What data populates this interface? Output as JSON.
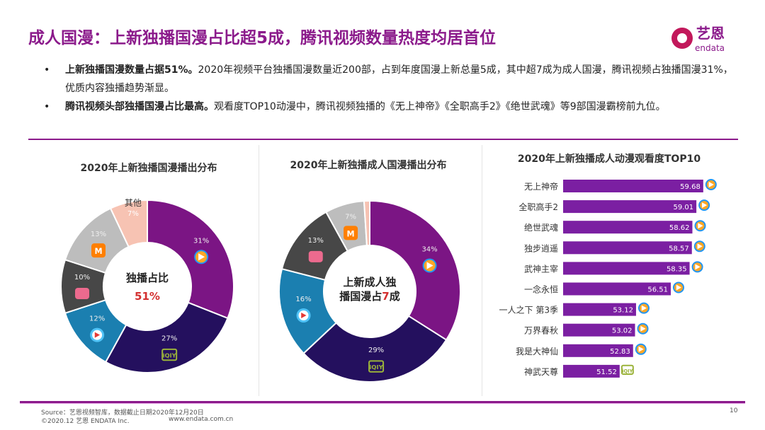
{
  "title": "成人国漫：上新独播国漫占比超5成，腾讯视频数量热度均居首位",
  "logo": {
    "cn": "艺恩",
    "en": "endata"
  },
  "bullets": [
    {
      "bold": "上新独播国漫数量占据51%。",
      "text": "2020年视频平台独播国漫数量近200部，占到年度国漫上新总量5成，其中超7成为成人国漫，腾讯视频占独播国漫31%，优质内容独播趋势渐显。"
    },
    {
      "bold": "腾讯视频头部独播国漫占比最高。",
      "text": "观看度TOP10动漫中，腾讯视频独播的《无上神帝》《全职高手2》《绝世武魂》等9部国漫霸榜前九位。"
    }
  ],
  "chart_data": [
    {
      "type": "pie",
      "title": "2020年上新独播国漫播出分布",
      "center_label": [
        "独播占比",
        "51%"
      ],
      "slices": [
        {
          "platform": "腾讯视频",
          "value": 31,
          "label": "31%",
          "icon": "tencent-video-icon",
          "color": "#7b1584"
        },
        {
          "platform": "爱奇艺",
          "value": 27,
          "label": "27%",
          "icon": "iqiyi-icon",
          "color": "#24105e"
        },
        {
          "platform": "优酷",
          "value": 12,
          "label": "12%",
          "icon": "youku-icon",
          "color": "#1b7fb0"
        },
        {
          "platform": "哔哩哔哩",
          "value": 10,
          "label": "10%",
          "icon": "bilibili-icon",
          "color": "#474747"
        },
        {
          "platform": "芒果TV",
          "value": 13,
          "label": "13%",
          "icon": "mango-tv-icon",
          "color": "#bdbdbd"
        },
        {
          "platform": "其他",
          "value": 7,
          "label": "7%",
          "name": "其他",
          "color": "#f7c3b3"
        }
      ]
    },
    {
      "type": "pie",
      "title": "2020年上新独播成人国漫播出分布",
      "center_label": [
        "上新成人独",
        "播国漫占",
        "7",
        "成"
      ],
      "slices": [
        {
          "platform": "腾讯视频",
          "value": 34,
          "label": "34%",
          "icon": "tencent-video-icon",
          "color": "#7b1584"
        },
        {
          "platform": "爱奇艺",
          "value": 29,
          "label": "29%",
          "icon": "iqiyi-icon",
          "color": "#24105e"
        },
        {
          "platform": "优酷",
          "value": 16,
          "label": "16%",
          "icon": "youku-icon",
          "color": "#1b7fb0"
        },
        {
          "platform": "哔哩哔哩",
          "value": 13,
          "label": "13%",
          "icon": "bilibili-icon",
          "color": "#474747"
        },
        {
          "platform": "芒果TV",
          "value": 7,
          "label": "7%",
          "icon": "mango-tv-icon",
          "color": "#bdbdbd"
        },
        {
          "platform": "其他",
          "value": 1,
          "label": "",
          "color": "#f7c3b3"
        }
      ]
    },
    {
      "type": "bar",
      "orientation": "horizontal",
      "title": "2020年上新独播成人动漫观看度TOP10",
      "xlim": [
        46,
        60
      ],
      "color": "#7b1fa2",
      "categories": [
        "无上神帝",
        "全职高手2",
        "绝世武魂",
        "独步逍遥",
        "武神主宰",
        "一念永恒",
        "一人之下 第3季",
        "万界春秋",
        "我是大神仙",
        "神武天尊"
      ],
      "values": [
        59.68,
        59.01,
        58.62,
        58.57,
        58.35,
        56.51,
        53.12,
        53.02,
        52.83,
        51.52
      ],
      "icons": [
        "tencent-video-icon",
        "tencent-video-icon",
        "tencent-video-icon",
        "tencent-video-icon",
        "tencent-video-icon",
        "tencent-video-icon",
        "tencent-video-icon",
        "tencent-video-icon",
        "tencent-video-icon",
        "iqiyi-icon"
      ]
    }
  ],
  "footer": {
    "source": "Source：艺恩视频智库，数据截止日期2020年12月20日",
    "copyright": "©2020.12 艺恩 ENDATA Inc.",
    "url": "www.endata.com.cn",
    "page": "10"
  }
}
